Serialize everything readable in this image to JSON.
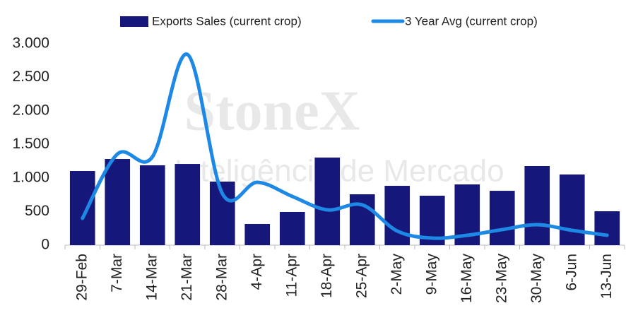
{
  "chart_data": {
    "type": "bar",
    "watermark": [
      "StoneX",
      "Inteligência de Mercado"
    ],
    "categories": [
      "29-Feb",
      "7-Mar",
      "14-Mar",
      "21-Mar",
      "28-Mar",
      "4-Apr",
      "11-Apr",
      "18-Apr",
      "25-Apr",
      "2-May",
      "9-May",
      "16-May",
      "23-May",
      "30-May",
      "6-Jun",
      "13-Jun"
    ],
    "series": [
      {
        "name": "Exports Sales (current crop)",
        "type": "bar",
        "color": "#15177a",
        "values": [
          1105,
          1284,
          1190,
          1210,
          947,
          316,
          495,
          1305,
          758,
          884,
          737,
          905,
          810,
          1179,
          1053,
          505
        ]
      },
      {
        "name": "3 Year Avg (current crop)",
        "type": "line",
        "color": "#1e88e5",
        "values": [
          400,
          1358,
          1316,
          2842,
          768,
          937,
          726,
          526,
          600,
          210,
          105,
          147,
          232,
          305,
          221,
          147
        ]
      }
    ],
    "ylim": [
      0,
      3000
    ],
    "yticks": [
      0,
      500,
      {
        "value": 1000,
        "label": "1.000"
      },
      {
        "value": 1500,
        "label": "1.500"
      },
      {
        "value": 2000,
        "label": "2.000"
      },
      {
        "value": 2500,
        "label": "2.500"
      },
      {
        "value": 3000,
        "label": "3.000"
      }
    ],
    "legend": "top"
  }
}
